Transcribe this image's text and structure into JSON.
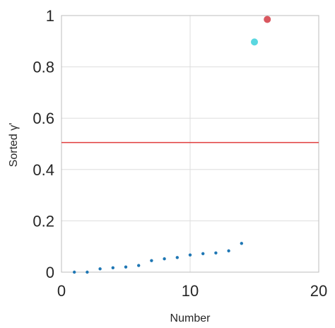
{
  "chart_data": {
    "type": "scatter",
    "xlabel": "Number",
    "ylabel": "Sorted γ'",
    "xlim": [
      0,
      20
    ],
    "ylim": [
      0,
      1
    ],
    "xticks": [
      "0",
      "10",
      "20"
    ],
    "yticks": [
      "0",
      "0.2",
      "0.4",
      "0.6",
      "0.8",
      "1"
    ],
    "grid": true,
    "series": [
      {
        "color": "#1f77b4",
        "marker": "small-dot",
        "points": [
          [
            1,
            0.0
          ],
          [
            2,
            0.0
          ],
          [
            3,
            0.013
          ],
          [
            4,
            0.017
          ],
          [
            5,
            0.02
          ],
          [
            6,
            0.026
          ],
          [
            7,
            0.045
          ],
          [
            8,
            0.052
          ],
          [
            9,
            0.057
          ],
          [
            10,
            0.067
          ],
          [
            11,
            0.072
          ],
          [
            12,
            0.075
          ],
          [
            13,
            0.083
          ],
          [
            14,
            0.112
          ]
        ]
      },
      {
        "color": "#5ad7e0",
        "marker": "large-dot",
        "points": [
          [
            15,
            0.897
          ]
        ]
      },
      {
        "color": "#d9575f",
        "marker": "large-dot",
        "points": [
          [
            16,
            0.985
          ]
        ]
      }
    ],
    "threshold": {
      "y": 0.505,
      "color": "#e03c3c"
    }
  }
}
